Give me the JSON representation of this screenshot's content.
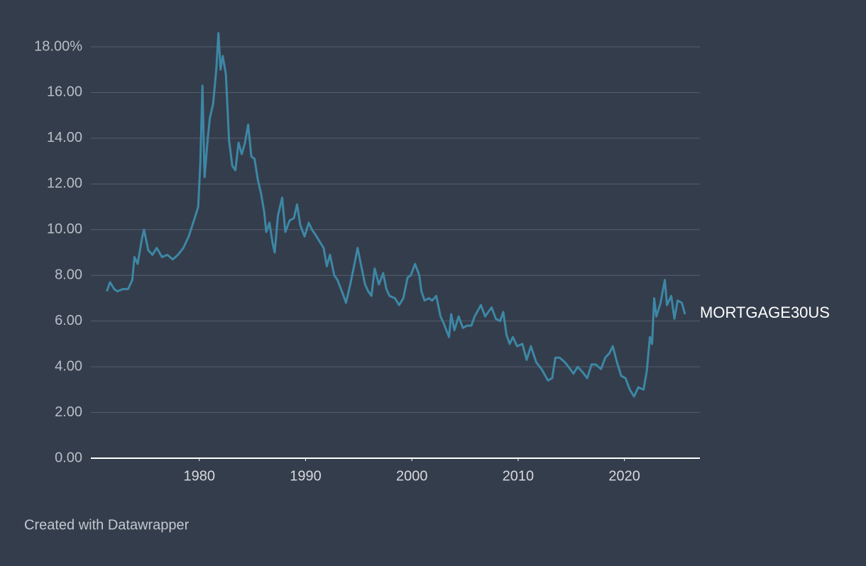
{
  "chart_data": {
    "type": "line",
    "x": [
      1971.3,
      1971.6,
      1972.0,
      1972.3,
      1972.8,
      1973.3,
      1973.7,
      1973.9,
      1974.2,
      1974.6,
      1974.8,
      1975.2,
      1975.6,
      1976.0,
      1976.5,
      1977.0,
      1977.5,
      1978.0,
      1978.5,
      1979.0,
      1979.5,
      1979.9,
      1980.1,
      1980.3,
      1980.5,
      1980.8,
      1981.0,
      1981.3,
      1981.6,
      1981.8,
      1982.0,
      1982.2,
      1982.5,
      1982.8,
      1983.1,
      1983.4,
      1983.7,
      1984.0,
      1984.3,
      1984.6,
      1984.9,
      1985.2,
      1985.5,
      1985.8,
      1986.1,
      1986.3,
      1986.6,
      1986.9,
      1987.1,
      1987.4,
      1987.8,
      1988.1,
      1988.5,
      1988.9,
      1989.2,
      1989.5,
      1989.9,
      1990.3,
      1990.6,
      1990.9,
      1991.3,
      1991.7,
      1992.0,
      1992.3,
      1992.7,
      1993.0,
      1993.5,
      1993.8,
      1994.2,
      1994.6,
      1994.9,
      1995.2,
      1995.6,
      1995.9,
      1996.2,
      1996.5,
      1996.9,
      1997.3,
      1997.6,
      1997.9,
      1998.4,
      1998.8,
      1999.2,
      1999.6,
      1999.9,
      2000.3,
      2000.7,
      2000.9,
      2001.2,
      2001.6,
      2001.9,
      2002.3,
      2002.7,
      2003.0,
      2003.5,
      2003.7,
      2004.0,
      2004.4,
      2004.8,
      2005.2,
      2005.6,
      2005.9,
      2006.5,
      2006.9,
      2007.5,
      2007.9,
      2008.3,
      2008.6,
      2008.9,
      2009.2,
      2009.5,
      2009.9,
      2010.4,
      2010.8,
      2011.2,
      2011.7,
      2012.2,
      2012.8,
      2013.2,
      2013.5,
      2013.9,
      2014.4,
      2014.9,
      2015.2,
      2015.6,
      2016.0,
      2016.5,
      2016.9,
      2017.3,
      2017.8,
      2018.2,
      2018.6,
      2018.9,
      2019.3,
      2019.7,
      2020.1,
      2020.5,
      2020.9,
      2021.3,
      2021.8,
      2022.1,
      2022.4,
      2022.6,
      2022.8,
      2023.0,
      2023.4,
      2023.8,
      2024.0,
      2024.4,
      2024.7,
      2025.0,
      2025.4,
      2025.7
    ],
    "series": [
      {
        "name": "MORTGAGE30US",
        "color": "#3d87a6",
        "values": [
          7.3,
          7.7,
          7.4,
          7.3,
          7.4,
          7.4,
          7.8,
          8.8,
          8.5,
          9.6,
          10.0,
          9.1,
          8.9,
          9.2,
          8.8,
          8.9,
          8.7,
          8.9,
          9.2,
          9.7,
          10.4,
          11.0,
          12.9,
          16.3,
          12.3,
          14.0,
          14.9,
          15.5,
          17.0,
          18.6,
          17.0,
          17.6,
          16.8,
          13.9,
          12.8,
          12.6,
          13.8,
          13.3,
          13.8,
          14.6,
          13.2,
          13.1,
          12.2,
          11.6,
          10.8,
          9.9,
          10.3,
          9.4,
          9.0,
          10.6,
          11.4,
          9.9,
          10.4,
          10.5,
          11.1,
          10.2,
          9.7,
          10.3,
          10.0,
          9.8,
          9.5,
          9.2,
          8.4,
          8.9,
          8.0,
          7.8,
          7.2,
          6.8,
          7.6,
          8.5,
          9.2,
          8.5,
          7.6,
          7.3,
          7.1,
          8.3,
          7.6,
          8.1,
          7.4,
          7.1,
          7.0,
          6.7,
          7.0,
          7.9,
          8.0,
          8.5,
          8.0,
          7.3,
          6.9,
          7.0,
          6.9,
          7.1,
          6.2,
          5.9,
          5.3,
          6.3,
          5.6,
          6.2,
          5.7,
          5.8,
          5.8,
          6.2,
          6.7,
          6.2,
          6.6,
          6.1,
          6.0,
          6.4,
          5.4,
          5.0,
          5.3,
          4.9,
          5.0,
          4.3,
          4.9,
          4.2,
          3.9,
          3.4,
          3.5,
          4.4,
          4.4,
          4.2,
          3.9,
          3.7,
          4.0,
          3.8,
          3.5,
          4.1,
          4.1,
          3.9,
          4.4,
          4.6,
          4.9,
          4.2,
          3.6,
          3.5,
          3.0,
          2.7,
          3.1,
          3.0,
          3.8,
          5.3,
          5.0,
          7.0,
          6.2,
          6.8,
          7.8,
          6.7,
          7.1,
          6.1,
          6.9,
          6.8,
          6.3
        ]
      }
    ],
    "xlim": [
      1969.8,
      2027.1
    ],
    "xticks": [
      1980,
      1990,
      2000,
      2010,
      2020
    ],
    "ylim": [
      0,
      18
    ],
    "yticks": [
      {
        "value": 0,
        "label": "0.00"
      },
      {
        "value": 2,
        "label": "2.00"
      },
      {
        "value": 4,
        "label": "4.00"
      },
      {
        "value": 6,
        "label": "6.00"
      },
      {
        "value": 8,
        "label": "8.00"
      },
      {
        "value": 10,
        "label": "10.00"
      },
      {
        "value": 12,
        "label": "12.00"
      },
      {
        "value": 14,
        "label": "14.00"
      },
      {
        "value": 16,
        "label": "16.00"
      },
      {
        "value": 18,
        "label": "18.00%"
      }
    ],
    "grid": true,
    "footer": "Created with Datawrapper"
  }
}
